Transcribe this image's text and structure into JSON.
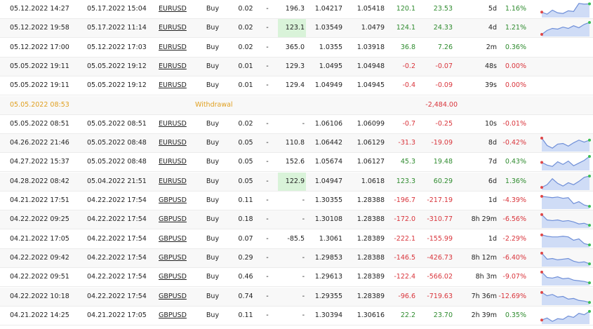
{
  "colors": {
    "positive": "#2e8b2e",
    "negative": "#d9343b",
    "withdrawal": "#e0a020",
    "highlight": "#d9f3d9",
    "sparkline_line": "#6f8fd8",
    "sparkline_fill": "#cfdcf6",
    "sparkline_start": "#e04848",
    "sparkline_end": "#3cbf55"
  },
  "trades": [
    {
      "open_time": "05.12.2022 14:27",
      "close_time": "05.17.2022 15:04",
      "symbol": "EURUSD",
      "type": "Buy",
      "lots": "0.02",
      "sl": "-",
      "pips": "196.3",
      "open_price": "1.04217",
      "close_price": "1.05418",
      "pips_profit": "120.1",
      "profit": "23.53",
      "duration": "5d",
      "gain": "1.16%",
      "pips_hl": false,
      "sign": "pos",
      "spark": [
        0.3,
        0.15,
        0.45,
        0.25,
        0.2,
        0.4,
        0.35,
        0.95,
        0.9,
        0.92
      ]
    },
    {
      "open_time": "05.12.2022 19:58",
      "close_time": "05.17.2022 11:14",
      "symbol": "EURUSD",
      "type": "Buy",
      "lots": "0.02",
      "sl": "-",
      "pips": "123.1",
      "open_price": "1.03549",
      "close_price": "1.0479",
      "pips_profit": "124.1",
      "profit": "24.33",
      "duration": "4d",
      "gain": "1.21%",
      "pips_hl": true,
      "sign": "pos",
      "spark": [
        0.05,
        0.35,
        0.5,
        0.45,
        0.6,
        0.5,
        0.7,
        0.55,
        0.8,
        0.95
      ]
    },
    {
      "open_time": "05.12.2022 17:00",
      "close_time": "05.12.2022 17:03",
      "symbol": "EURUSD",
      "type": "Buy",
      "lots": "0.02",
      "sl": "-",
      "pips": "365.0",
      "open_price": "1.0355",
      "close_price": "1.03918",
      "pips_profit": "36.8",
      "profit": "7.26",
      "duration": "2m",
      "gain": "0.36%",
      "pips_hl": false,
      "sign": "pos",
      "spark": null
    },
    {
      "open_time": "05.05.2022 19:11",
      "close_time": "05.05.2022 19:12",
      "symbol": "EURUSD",
      "type": "Buy",
      "lots": "0.01",
      "sl": "-",
      "pips": "129.3",
      "open_price": "1.0495",
      "close_price": "1.04948",
      "pips_profit": "-0.2",
      "profit": "-0.07",
      "duration": "48s",
      "gain": "0.00%",
      "pips_hl": false,
      "sign": "neg",
      "spark": null
    },
    {
      "open_time": "05.05.2022 19:11",
      "close_time": "05.05.2022 19:12",
      "symbol": "EURUSD",
      "type": "Buy",
      "lots": "0.01",
      "sl": "-",
      "pips": "129.4",
      "open_price": "1.04949",
      "close_price": "1.04945",
      "pips_profit": "-0.4",
      "profit": "-0.09",
      "duration": "39s",
      "gain": "0.00%",
      "pips_hl": false,
      "sign": "neg",
      "spark": null
    },
    {
      "withdrawal": true,
      "open_time": "05.05.2022 08:53",
      "type": "Withdrawal",
      "profit": "-2,484.00"
    },
    {
      "open_time": "05.05.2022 08:51",
      "close_time": "05.05.2022 08:51",
      "symbol": "EURUSD",
      "type": "Buy",
      "lots": "0.02",
      "sl": "-",
      "pips": "-",
      "open_price": "1.06106",
      "close_price": "1.06099",
      "pips_profit": "-0.7",
      "profit": "-0.25",
      "duration": "10s",
      "gain": "-0.01%",
      "pips_hl": false,
      "sign": "neg",
      "spark": null
    },
    {
      "open_time": "04.26.2022 21:46",
      "close_time": "05.05.2022 08:48",
      "symbol": "EURUSD",
      "type": "Buy",
      "lots": "0.05",
      "sl": "-",
      "pips": "110.8",
      "open_price": "1.06442",
      "close_price": "1.06129",
      "pips_profit": "-31.3",
      "profit": "-19.09",
      "duration": "8d",
      "gain": "-0.42%",
      "pips_hl": false,
      "sign": "neg",
      "spark": [
        0.9,
        0.35,
        0.15,
        0.45,
        0.5,
        0.3,
        0.55,
        0.75,
        0.6,
        0.75
      ]
    },
    {
      "open_time": "04.27.2022 15:37",
      "close_time": "05.05.2022 08:48",
      "symbol": "EURUSD",
      "type": "Buy",
      "lots": "0.05",
      "sl": "-",
      "pips": "152.6",
      "open_price": "1.05674",
      "close_price": "1.06127",
      "pips_profit": "45.3",
      "profit": "19.48",
      "duration": "7d",
      "gain": "0.43%",
      "pips_hl": false,
      "sign": "pos",
      "spark": [
        0.5,
        0.3,
        0.2,
        0.55,
        0.35,
        0.6,
        0.25,
        0.45,
        0.65,
        0.95
      ]
    },
    {
      "open_time": "04.28.2022 08:42",
      "close_time": "05.04.2022 21:51",
      "symbol": "EURUSD",
      "type": "Buy",
      "lots": "0.05",
      "sl": "-",
      "pips": "122.9",
      "open_price": "1.04947",
      "close_price": "1.0618",
      "pips_profit": "123.3",
      "profit": "60.29",
      "duration": "6d",
      "gain": "1.36%",
      "pips_hl": true,
      "sign": "pos",
      "spark": [
        0.1,
        0.3,
        0.75,
        0.4,
        0.2,
        0.45,
        0.3,
        0.55,
        0.85,
        0.95
      ]
    },
    {
      "open_time": "04.21.2022 17:51",
      "close_time": "04.22.2022 17:54",
      "symbol": "GBPUSD",
      "type": "Buy",
      "lots": "0.11",
      "sl": "-",
      "pips": "-",
      "open_price": "1.30355",
      "close_price": "1.28388",
      "pips_profit": "-196.7",
      "profit": "-217.19",
      "duration": "1d",
      "gain": "-4.39%",
      "pips_hl": false,
      "sign": "neg",
      "spark": [
        0.85,
        0.8,
        0.75,
        0.8,
        0.7,
        0.75,
        0.3,
        0.45,
        0.2,
        0.1
      ]
    },
    {
      "open_time": "04.22.2022 09:25",
      "close_time": "04.22.2022 17:54",
      "symbol": "GBPUSD",
      "type": "Buy",
      "lots": "0.18",
      "sl": "-",
      "pips": "-",
      "open_price": "1.30108",
      "close_price": "1.28388",
      "pips_profit": "-172.0",
      "profit": "-310.77",
      "duration": "8h 29m",
      "gain": "-6.56%",
      "pips_hl": false,
      "sign": "neg",
      "spark": [
        0.9,
        0.5,
        0.45,
        0.5,
        0.4,
        0.45,
        0.35,
        0.2,
        0.25,
        0.1
      ]
    },
    {
      "open_time": "04.21.2022 17:05",
      "close_time": "04.22.2022 17:54",
      "symbol": "GBPUSD",
      "type": "Buy",
      "lots": "0.07",
      "sl": "-",
      "pips": "-85.5",
      "open_price": "1.3061",
      "close_price": "1.28389",
      "pips_profit": "-222.1",
      "profit": "-155.99",
      "duration": "1d",
      "gain": "-2.29%",
      "pips_hl": false,
      "sign": "neg",
      "spark": [
        0.85,
        0.75,
        0.7,
        0.7,
        0.75,
        0.7,
        0.45,
        0.55,
        0.2,
        0.1
      ]
    },
    {
      "open_time": "04.22.2022 09:42",
      "close_time": "04.22.2022 17:54",
      "symbol": "GBPUSD",
      "type": "Buy",
      "lots": "0.29",
      "sl": "-",
      "pips": "-",
      "open_price": "1.29853",
      "close_price": "1.28388",
      "pips_profit": "-146.5",
      "profit": "-426.73",
      "duration": "8h 12m",
      "gain": "-6.40%",
      "pips_hl": false,
      "sign": "neg",
      "spark": [
        0.9,
        0.45,
        0.5,
        0.4,
        0.45,
        0.5,
        0.3,
        0.2,
        0.25,
        0.1
      ]
    },
    {
      "open_time": "04.22.2022 09:51",
      "close_time": "04.22.2022 17:54",
      "symbol": "GBPUSD",
      "type": "Buy",
      "lots": "0.46",
      "sl": "-",
      "pips": "-",
      "open_price": "1.29613",
      "close_price": "1.28389",
      "pips_profit": "-122.4",
      "profit": "-566.02",
      "duration": "8h 3m",
      "gain": "-9.07%",
      "pips_hl": false,
      "sign": "neg",
      "spark": [
        0.9,
        0.5,
        0.45,
        0.55,
        0.4,
        0.45,
        0.3,
        0.25,
        0.2,
        0.1
      ]
    },
    {
      "open_time": "04.22.2022 10:18",
      "close_time": "04.22.2022 17:54",
      "symbol": "GBPUSD",
      "type": "Buy",
      "lots": "0.74",
      "sl": "-",
      "pips": "-",
      "open_price": "1.29355",
      "close_price": "1.28389",
      "pips_profit": "-96.6",
      "profit": "-719.63",
      "duration": "7h 36m",
      "gain": "-12.69%",
      "pips_hl": false,
      "sign": "neg",
      "spark": [
        0.85,
        0.6,
        0.7,
        0.5,
        0.55,
        0.35,
        0.4,
        0.25,
        0.2,
        0.1
      ]
    },
    {
      "open_time": "04.21.2022 14:25",
      "close_time": "04.21.2022 17:05",
      "symbol": "GBPUSD",
      "type": "Buy",
      "lots": "0.11",
      "sl": "-",
      "pips": "-",
      "open_price": "1.30394",
      "close_price": "1.30616",
      "pips_profit": "22.2",
      "profit": "23.70",
      "duration": "2h 39m",
      "gain": "0.35%",
      "pips_hl": false,
      "sign": "pos",
      "spark": [
        0.2,
        0.35,
        0.1,
        0.3,
        0.25,
        0.5,
        0.4,
        0.7,
        0.6,
        0.85
      ]
    }
  ]
}
